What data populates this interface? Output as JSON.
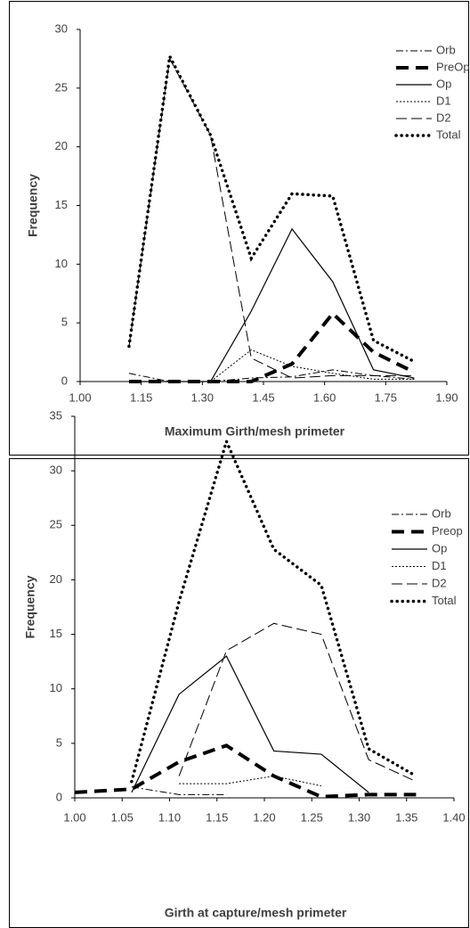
{
  "chart_data": [
    {
      "type": "line",
      "x_label": "Maximum Girth/mesh primeter",
      "y_label": "Frequency",
      "xlim": [
        1.0,
        1.9
      ],
      "ylim": [
        0,
        30
      ],
      "xticks": [
        {
          "value": 1.0,
          "label": "1.00"
        },
        1.15,
        {
          "value": 1.3,
          "label": "1.30"
        },
        1.45,
        {
          "value": 1.6,
          "label": "1.60"
        },
        1.75,
        {
          "value": 1.9,
          "label": "1.90"
        }
      ],
      "yticks": [
        0,
        5,
        10,
        15,
        20,
        25,
        30
      ],
      "x": [
        1.12,
        1.22,
        1.32,
        1.42,
        1.52,
        1.62,
        1.72,
        1.82
      ],
      "legend": "upper right",
      "series": [
        {
          "name": "Orb",
          "color": "#000000",
          "style": "dash-dot",
          "values": [
            0.7,
            0,
            0,
            0.3,
            0.4,
            1,
            0.5,
            0.2
          ]
        },
        {
          "name": "PreOp",
          "color": "#000000",
          "style": "heavy-dash",
          "values": [
            0,
            0,
            0,
            0,
            1.5,
            5.8,
            2.5,
            0.8
          ]
        },
        {
          "name": "Op",
          "color": "#000000",
          "style": "solid",
          "values": [
            0,
            0,
            0,
            6,
            13,
            8.5,
            1,
            0.3
          ]
        },
        {
          "name": "D1",
          "color": "#000000",
          "style": "fine-dot",
          "values": [
            0,
            0,
            0,
            2.7,
            1.3,
            0.7,
            0.2,
            0.2
          ]
        },
        {
          "name": "D2",
          "color": "#000000",
          "style": "long-dash",
          "values": [
            3,
            27.5,
            21,
            2,
            0.3,
            0.5,
            0.5,
            0.5
          ]
        },
        {
          "name": "Total",
          "color": "#000000",
          "style": "heavy-dot",
          "values": [
            3,
            27.7,
            21,
            10.5,
            16,
            15.8,
            3.5,
            1.7
          ]
        }
      ]
    },
    {
      "type": "line",
      "x_label": "Girth at capture/mesh primeter",
      "y_label": "Frequency",
      "xlim": [
        1.0,
        1.4
      ],
      "ylim": [
        0,
        35
      ],
      "xticks": [
        {
          "value": 1.0,
          "label": "1.00"
        },
        1.05,
        {
          "value": 1.1,
          "label": "1.10"
        },
        1.15,
        {
          "value": 1.2,
          "label": "1.20"
        },
        1.25,
        {
          "value": 1.3,
          "label": "1.30"
        },
        1.35,
        {
          "value": 1.4,
          "label": "1.40"
        }
      ],
      "yticks": [
        0,
        5,
        10,
        15,
        20,
        25,
        30,
        35
      ],
      "x": [
        1.0,
        1.06,
        1.11,
        1.16,
        1.21,
        1.26,
        1.31,
        1.36
      ],
      "legend": "upper right",
      "series": [
        {
          "name": "Orb",
          "color": "#000000",
          "style": "dash-dot",
          "values": [
            null,
            1,
            0.3,
            0.3,
            null,
            null,
            null,
            null
          ]
        },
        {
          "name": "Preop",
          "color": "#000000",
          "style": "heavy-dash",
          "values": [
            0.5,
            0.8,
            3.3,
            4.8,
            2,
            0.1,
            0.3,
            0.3
          ]
        },
        {
          "name": "Op",
          "color": "#000000",
          "style": "solid",
          "values": [
            null,
            0.5,
            9.5,
            13,
            4.3,
            4,
            0.5,
            null
          ]
        },
        {
          "name": "D1",
          "color": "#000000",
          "style": "fine-dot",
          "values": [
            null,
            null,
            1.3,
            1.3,
            2,
            1.1,
            null,
            null
          ]
        },
        {
          "name": "D2",
          "color": "#000000",
          "style": "long-dash",
          "values": [
            null,
            null,
            2,
            13.5,
            16,
            15,
            3.5,
            1.5
          ]
        },
        {
          "name": "Total",
          "color": "#000000",
          "style": "heavy-dot",
          "values": [
            null,
            1.5,
            18,
            32.7,
            22.8,
            19.5,
            4.5,
            2
          ]
        }
      ]
    }
  ]
}
